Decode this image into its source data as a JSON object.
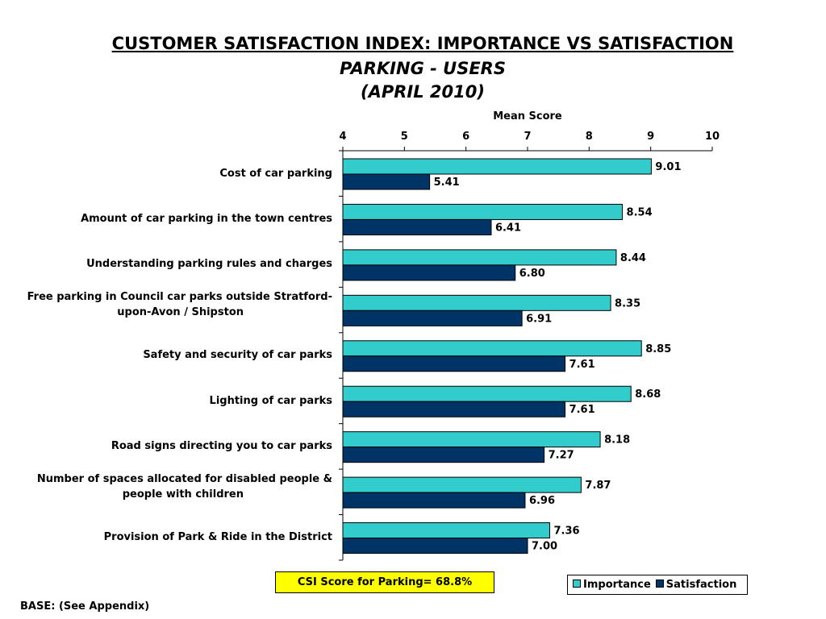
{
  "header": {
    "line1": "CUSTOMER SATISFACTION INDEX: IMPORTANCE VS SATISFACTION",
    "line2": "PARKING - USERS",
    "line3": "(APRIL 2010)"
  },
  "colors": {
    "importance": "#33cccc",
    "satisfaction": "#003366",
    "axis": "#000000"
  },
  "chart_data": {
    "type": "bar",
    "orientation": "horizontal",
    "axis_title": "Mean Score",
    "xlim": [
      4,
      10
    ],
    "ticks": [
      "4",
      "5",
      "6",
      "7",
      "8",
      "9",
      "10"
    ],
    "categories": [
      [
        "Cost of car parking"
      ],
      [
        "Amount of car parking in the town centres"
      ],
      [
        "Understanding parking rules and charges"
      ],
      [
        "Free parking in Council car parks outside Stratford-",
        "upon-Avon / Shipston"
      ],
      [
        "Safety and security of car parks"
      ],
      [
        "Lighting of car parks"
      ],
      [
        "Road signs directing you to car parks"
      ],
      [
        "Number of spaces allocated for disabled people &",
        "people with children"
      ],
      [
        "Provision of Park & Ride in the District"
      ]
    ],
    "series": [
      {
        "name": "Importance",
        "values": [
          9.01,
          8.54,
          8.44,
          8.35,
          8.85,
          8.68,
          8.18,
          7.87,
          7.36
        ],
        "labels": [
          "9.01",
          "8.54",
          "8.44",
          "8.35",
          "8.85",
          "8.68",
          "8.18",
          "7.87",
          "7.36"
        ]
      },
      {
        "name": "Satisfaction",
        "values": [
          5.41,
          6.41,
          6.8,
          6.91,
          7.61,
          7.61,
          7.27,
          6.96,
          7.0
        ],
        "labels": [
          "5.41",
          "6.41",
          "6.80",
          "6.91",
          "7.61",
          "7.61",
          "7.27",
          "6.96",
          "7.00"
        ]
      }
    ],
    "legend_position": "bottom-right",
    "grid": false
  },
  "csi_box": "CSI Score for Parking= 68.8%",
  "base_note": "BASE: (See Appendix)"
}
